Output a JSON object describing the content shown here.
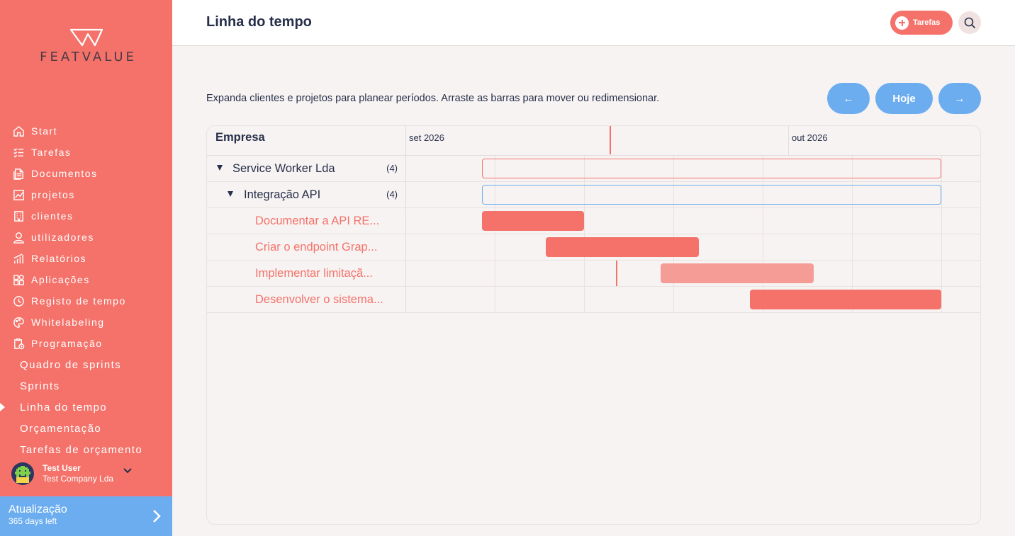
{
  "app": {
    "logo_text": "FEATVALUE"
  },
  "sidebar": {
    "items": [
      {
        "label": "Start",
        "icon": "home-icon"
      },
      {
        "label": "Tarefas",
        "icon": "checklist-icon"
      },
      {
        "label": "Documentos",
        "icon": "documents-icon"
      },
      {
        "label": "projetos",
        "icon": "chart-icon"
      },
      {
        "label": "clientes",
        "icon": "building-icon"
      },
      {
        "label": "utilizadores",
        "icon": "user-icon"
      },
      {
        "label": "Relatórios",
        "icon": "bar-chart-icon"
      },
      {
        "label": "Aplicações",
        "icon": "apps-icon"
      },
      {
        "label": "Registo de tempo",
        "icon": "timer-icon"
      },
      {
        "label": "Whitelabeling",
        "icon": "palette-icon"
      },
      {
        "label": "Programação",
        "icon": "clipboard-clock-icon"
      }
    ],
    "sub_items": [
      {
        "label": "Quadro de sprints"
      },
      {
        "label": "Sprints"
      },
      {
        "label": "Linha do tempo",
        "active": true
      },
      {
        "label": "Orçamentação"
      },
      {
        "label": "Tarefas de orçamento"
      }
    ],
    "user": {
      "name": "Test User",
      "company": "Test Company Lda"
    },
    "upgrade": {
      "title": "Atualização",
      "subtitle": "365 days left"
    }
  },
  "header": {
    "title": "Linha do tempo",
    "tasks_button": "Tarefas"
  },
  "main": {
    "instructions": "Expanda clientes e projetos para planear períodos. Arraste as barras para mover ou redimensionar.",
    "prev_button": "←",
    "today_button": "Hoje",
    "next_button": "→"
  },
  "gantt": {
    "column_header": "Empresa",
    "months": [
      "set 2026",
      "out 2026"
    ],
    "rows": [
      {
        "label": "Service Worker Lda",
        "count": "(4)",
        "level": 0,
        "type": "client"
      },
      {
        "label": "Integração API",
        "count": "(4)",
        "level": 1,
        "type": "project"
      },
      {
        "label": "Documentar a API RE...",
        "level": 2,
        "type": "task"
      },
      {
        "label": "Criar o endpoint Grap...",
        "level": 2,
        "type": "task"
      },
      {
        "label": "Implementar limitaçã...",
        "level": 2,
        "type": "task"
      },
      {
        "label": "Desenvolver o sistema...",
        "level": 2,
        "type": "task"
      }
    ]
  },
  "colors": {
    "accent": "#f4726a",
    "blue": "#6cadf0",
    "text": "#27304a"
  }
}
